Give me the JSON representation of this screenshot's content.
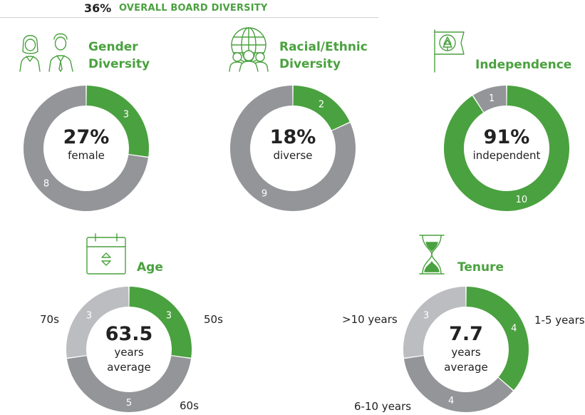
{
  "header": {
    "percent": "36%",
    "label": "OVERALL BOARD DIVERSITY"
  },
  "colors": {
    "green": "#4aa13f",
    "dark_gray": "#939598",
    "light_gray": "#bcbdc0",
    "text": "#222222"
  },
  "icons": [
    "people-icon",
    "globe-people-icon",
    "flag-tree-icon",
    "calendar-icon",
    "hourglass-icon"
  ],
  "chart_data": [
    {
      "type": "pie",
      "title": "Gender Diversity",
      "title_lines": [
        "Gender",
        "Diversity"
      ],
      "center_value": "27%",
      "center_sub": [
        "female"
      ],
      "slices": [
        {
          "label": "",
          "value": 3,
          "color": "green"
        },
        {
          "label": "",
          "value": 8,
          "color": "dark_gray"
        }
      ]
    },
    {
      "type": "pie",
      "title": "Racial/Ethnic Diversity",
      "title_lines": [
        "Racial/Ethnic",
        "Diversity"
      ],
      "center_value": "18%",
      "center_sub": [
        "diverse"
      ],
      "slices": [
        {
          "label": "",
          "value": 2,
          "color": "green"
        },
        {
          "label": "",
          "value": 9,
          "color": "dark_gray"
        }
      ]
    },
    {
      "type": "pie",
      "title": "Independence",
      "title_lines": [
        "Independence"
      ],
      "center_value": "91%",
      "center_sub": [
        "independent"
      ],
      "slices": [
        {
          "label": "",
          "value": 10,
          "color": "green"
        },
        {
          "label": "",
          "value": 1,
          "color": "dark_gray"
        }
      ]
    },
    {
      "type": "pie",
      "title": "Age",
      "title_lines": [
        "Age"
      ],
      "center_value": "63.5",
      "center_sub": [
        "years",
        "average"
      ],
      "slices": [
        {
          "label": "50s",
          "value": 3,
          "color": "green"
        },
        {
          "label": "60s",
          "value": 5,
          "color": "dark_gray"
        },
        {
          "label": "70s",
          "value": 3,
          "color": "light_gray"
        }
      ]
    },
    {
      "type": "pie",
      "title": "Tenure",
      "title_lines": [
        "Tenure"
      ],
      "center_value": "7.7",
      "center_sub": [
        "years",
        "average"
      ],
      "slices": [
        {
          "label": "1-5 years",
          "value": 4,
          "color": "green"
        },
        {
          "label": "6-10 years",
          "value": 4,
          "color": "dark_gray"
        },
        {
          "label": ">10 years",
          "value": 3,
          "color": "light_gray"
        }
      ]
    }
  ]
}
